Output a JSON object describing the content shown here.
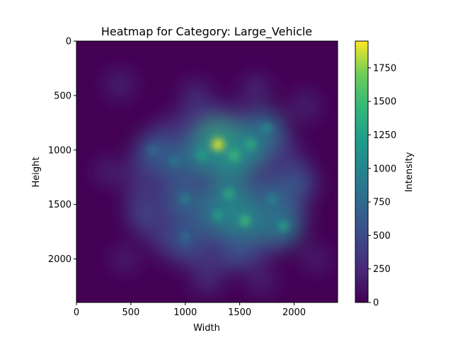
{
  "chart_data": {
    "type": "heatmap",
    "title": "Heatmap for Category: Large_Vehicle",
    "xlabel": "Width",
    "ylabel": "Height",
    "xlim": [
      0,
      2400
    ],
    "ylim": [
      2400,
      0
    ],
    "x_ticks": [
      "0",
      "500",
      "1000",
      "1500",
      "2000"
    ],
    "y_ticks": [
      "0",
      "500",
      "1000",
      "1500",
      "2000"
    ],
    "colormap": "viridis",
    "colorbar": {
      "label": "Intensity",
      "range": [
        0,
        1950
      ],
      "ticks": [
        "0",
        "250",
        "500",
        "750",
        "1000",
        "1250",
        "1500",
        "1750"
      ]
    },
    "hotspots": [
      {
        "x": 1300,
        "y": 950,
        "intensity": 1900
      },
      {
        "x": 1450,
        "y": 1050,
        "intensity": 1500
      },
      {
        "x": 1150,
        "y": 1050,
        "intensity": 1300
      },
      {
        "x": 1600,
        "y": 950,
        "intensity": 1400
      },
      {
        "x": 1750,
        "y": 800,
        "intensity": 1150
      },
      {
        "x": 1400,
        "y": 1400,
        "intensity": 1400
      },
      {
        "x": 1300,
        "y": 1600,
        "intensity": 1300
      },
      {
        "x": 1550,
        "y": 1650,
        "intensity": 1500
      },
      {
        "x": 1900,
        "y": 1700,
        "intensity": 1300
      },
      {
        "x": 1800,
        "y": 1450,
        "intensity": 1100
      },
      {
        "x": 1000,
        "y": 1450,
        "intensity": 1050
      },
      {
        "x": 900,
        "y": 1100,
        "intensity": 1000
      },
      {
        "x": 700,
        "y": 1000,
        "intensity": 900
      },
      {
        "x": 1000,
        "y": 1800,
        "intensity": 900
      },
      {
        "x": 1500,
        "y": 1900,
        "intensity": 850
      },
      {
        "x": 2050,
        "y": 1300,
        "intensity": 850
      },
      {
        "x": 600,
        "y": 1600,
        "intensity": 650
      },
      {
        "x": 1100,
        "y": 500,
        "intensity": 550
      },
      {
        "x": 1650,
        "y": 450,
        "intensity": 500
      },
      {
        "x": 1200,
        "y": 2200,
        "intensity": 500
      },
      {
        "x": 400,
        "y": 400,
        "intensity": 450
      },
      {
        "x": 2100,
        "y": 600,
        "intensity": 450
      },
      {
        "x": 300,
        "y": 1200,
        "intensity": 400
      },
      {
        "x": 1700,
        "y": 2200,
        "intensity": 400
      },
      {
        "x": 2200,
        "y": 2000,
        "intensity": 350
      },
      {
        "x": 450,
        "y": 2000,
        "intensity": 350
      }
    ]
  }
}
